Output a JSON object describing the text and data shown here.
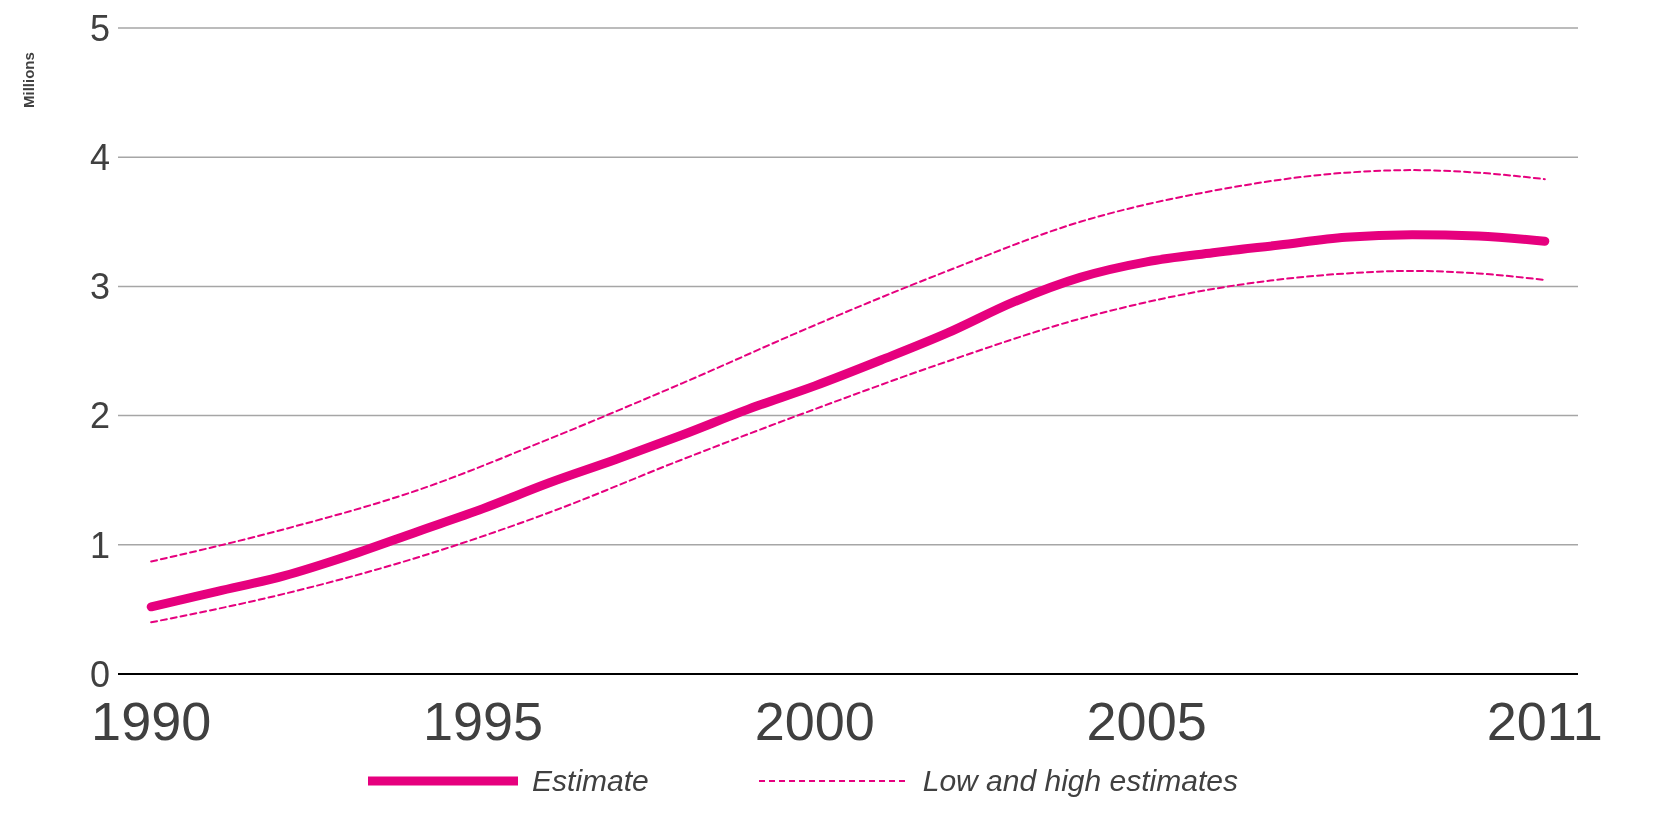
{
  "chart_data": {
    "type": "line",
    "ylabel": "Millions",
    "xlim": [
      1989.5,
      2011.5
    ],
    "xticks": [
      1990,
      1995,
      2000,
      2005,
      2011
    ],
    "ylim": [
      0,
      5
    ],
    "yticks": [
      0,
      1,
      2,
      3,
      4,
      5
    ],
    "grid": "y",
    "legend": "bottom",
    "marker": "none",
    "series": [
      {
        "name": "Estimate",
        "color": "#e6007e",
        "line_style": "solid",
        "x": [
          1990,
          1991,
          1992,
          1993,
          1994,
          1995,
          1996,
          1997,
          1998,
          1999,
          2000,
          2001,
          2002,
          2003,
          2004,
          2005,
          2006,
          2007,
          2008,
          2009,
          2010,
          2011
        ],
        "values": [
          0.52,
          0.64,
          0.76,
          0.92,
          1.1,
          1.28,
          1.48,
          1.66,
          1.85,
          2.05,
          2.23,
          2.43,
          2.64,
          2.88,
          3.07,
          3.19,
          3.26,
          3.32,
          3.38,
          3.4,
          3.39,
          3.35
        ]
      },
      {
        "name": "Low and high estimates",
        "color": "#e6007e",
        "line_style": "dashed",
        "x": [
          1990,
          1992,
          1994,
          1996,
          1998,
          2000,
          2002,
          2004,
          2006,
          2008,
          2009,
          2010,
          2011
        ],
        "values": [
          0.87,
          1.12,
          1.42,
          1.82,
          2.25,
          2.7,
          3.12,
          3.5,
          3.74,
          3.88,
          3.9,
          3.88,
          3.83
        ]
      },
      {
        "color": "#e6007e",
        "line_style": "dashed",
        "x": [
          1990,
          1992,
          1994,
          1996,
          1998,
          2000,
          2002,
          2004,
          2006,
          2008,
          2009,
          2010,
          2011
        ],
        "values": [
          0.4,
          0.62,
          0.9,
          1.25,
          1.66,
          2.05,
          2.42,
          2.75,
          2.98,
          3.1,
          3.12,
          3.1,
          3.05
        ]
      }
    ]
  }
}
